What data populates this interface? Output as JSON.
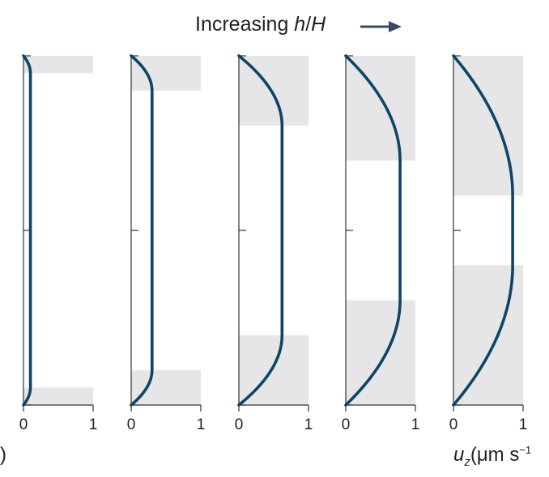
{
  "header": {
    "prefix": "Increasing ",
    "var_h": "h",
    "slash": "/",
    "var_H": "H"
  },
  "axis": {
    "left_fragment": ")",
    "u": "u",
    "u_sub": "z",
    "unit_open": "(μm s",
    "unit_sup": "−1"
  },
  "colors": {
    "curve": "#0d4566",
    "shade": "#e6e6e8",
    "axis": "#333333",
    "arrow": "#3a4a66"
  },
  "chart_data": {
    "type": "line",
    "panel_count": 5,
    "xlim": [
      0,
      1
    ],
    "ylim": [
      0,
      1
    ],
    "xticks": [
      "0",
      "1"
    ],
    "yticks": [
      0,
      0.5,
      1
    ],
    "panels": [
      {
        "shaded_fraction": 0.05,
        "max_uz": 0.1
      },
      {
        "shaded_fraction": 0.1,
        "max_uz": 0.3
      },
      {
        "shaded_fraction": 0.2,
        "max_uz": 0.62
      },
      {
        "shaded_fraction": 0.3,
        "max_uz": 0.78
      },
      {
        "shaded_fraction": 0.4,
        "max_uz": 0.85
      }
    ]
  }
}
